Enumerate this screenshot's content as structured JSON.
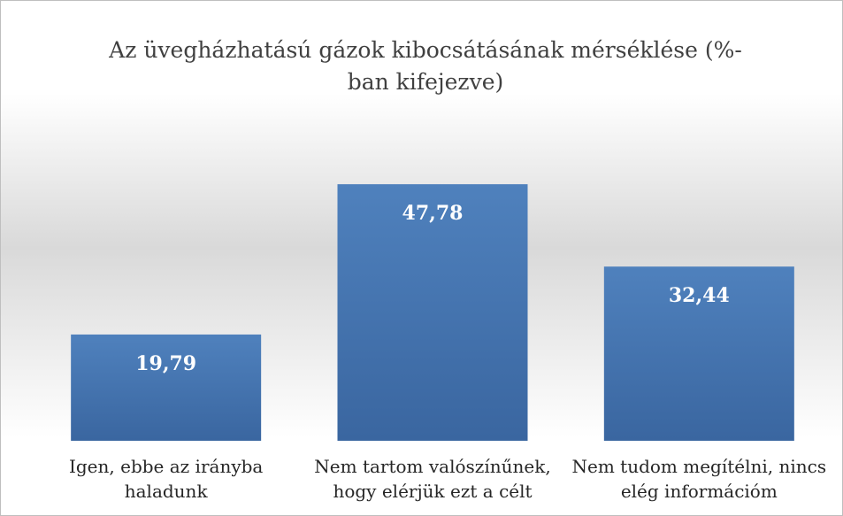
{
  "chart_data": {
    "type": "bar",
    "title": "Az üvegházhatású gázok kibocsátásának mérséklése (%-ban kifejezve)",
    "categories": [
      "Igen, ebbe az irányba haladunk",
      "Nem tartom valószínűnek, hogy elérjük ezt a célt",
      "Nem tudom megítélni, nincs elég információm"
    ],
    "values": [
      19.79,
      47.78,
      32.44
    ],
    "value_labels": [
      "19,79",
      "47,78",
      "32,44"
    ],
    "color": "#4f81bd",
    "ylim": [
      0,
      60
    ]
  }
}
